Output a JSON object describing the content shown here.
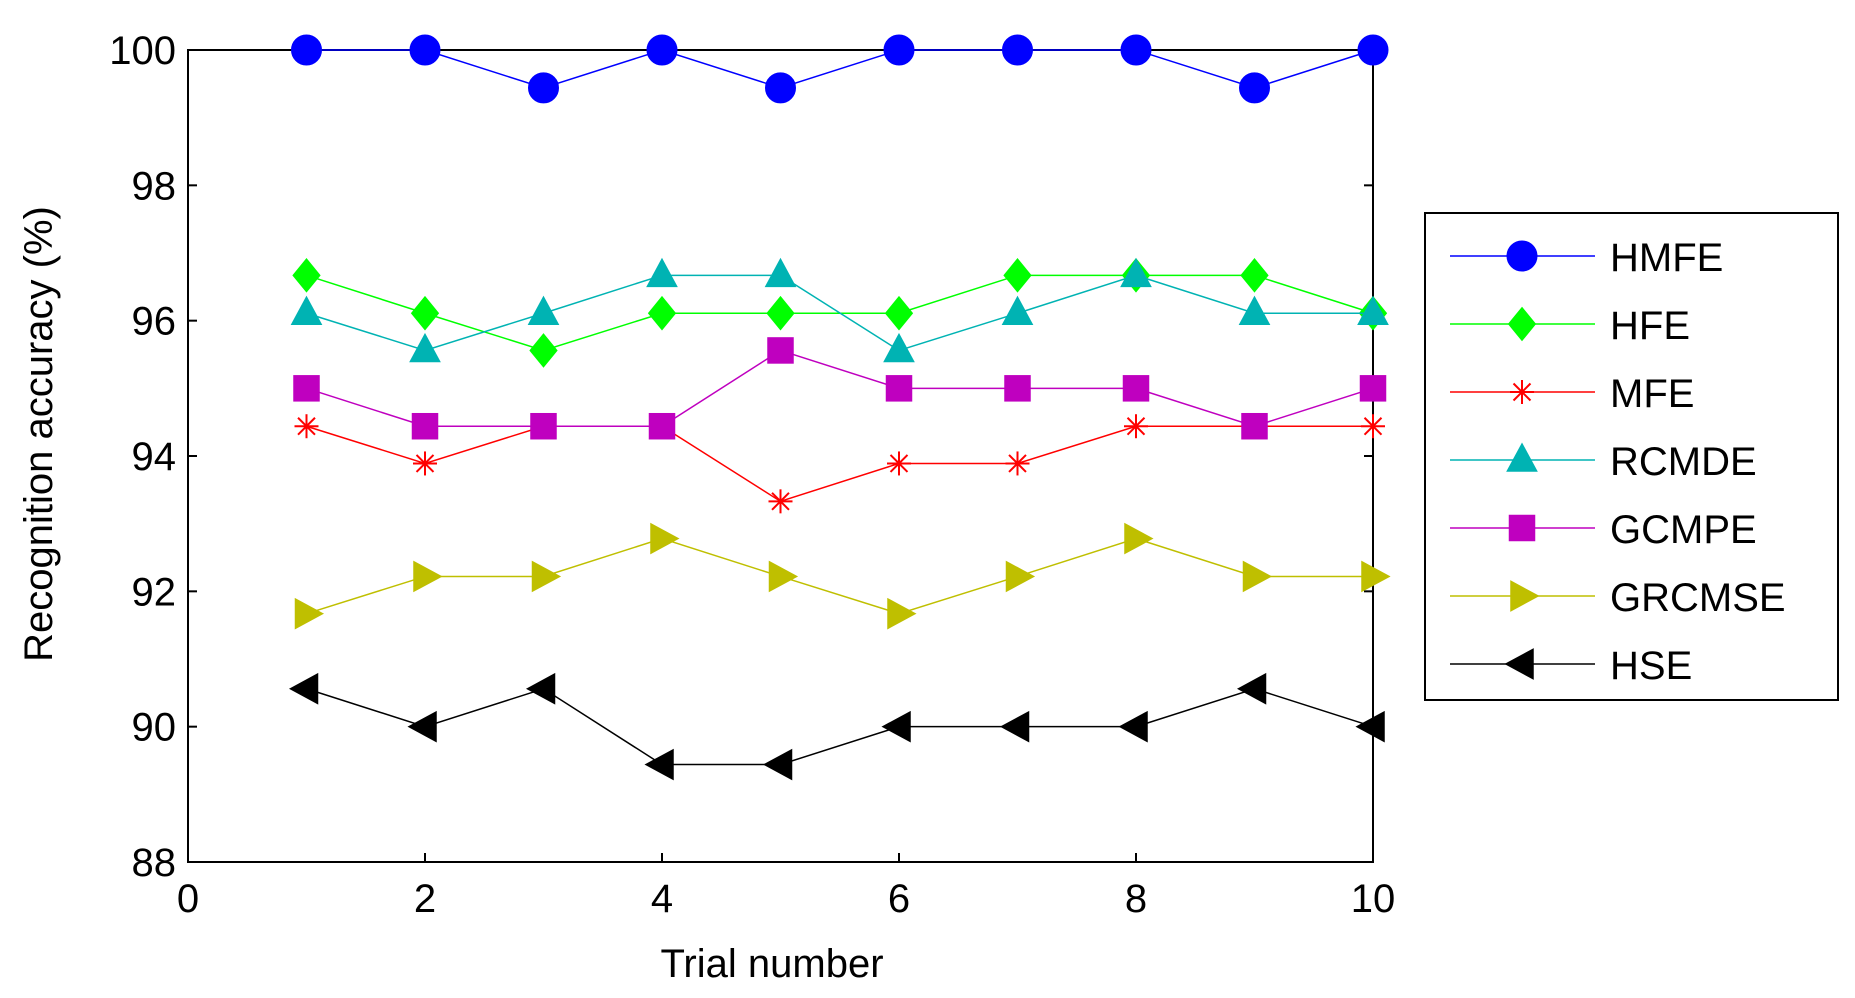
{
  "chart_data": {
    "type": "line",
    "title": "",
    "xlabel": "Trial number",
    "ylabel": "Recognition accuracy (%)",
    "xlim": [
      0,
      10
    ],
    "ylim": [
      88,
      100
    ],
    "xticks": [
      "0",
      "2",
      "4",
      "6",
      "8",
      "10"
    ],
    "yticks": [
      "88",
      "90",
      "92",
      "94",
      "96",
      "98",
      "100"
    ],
    "grid": false,
    "legend_position": "right",
    "x": [
      1,
      2,
      3,
      4,
      5,
      6,
      7,
      8,
      9,
      10
    ],
    "series": [
      {
        "name": "HMFE",
        "color": "#0000ff",
        "marker": "circle",
        "values": [
          100,
          100,
          99.44,
          100,
          99.44,
          100,
          100,
          100,
          99.44,
          100
        ]
      },
      {
        "name": "HFE",
        "color": "#00ff00",
        "marker": "diamond",
        "values": [
          96.67,
          96.11,
          95.56,
          96.11,
          96.11,
          96.11,
          96.67,
          96.67,
          96.67,
          96.11
        ]
      },
      {
        "name": "MFE",
        "color": "#ff0000",
        "marker": "star",
        "values": [
          94.44,
          93.89,
          94.44,
          94.44,
          93.33,
          93.89,
          93.89,
          94.44,
          94.44,
          94.44
        ]
      },
      {
        "name": "RCMDE",
        "color": "#00b3b3",
        "marker": "triangle-up",
        "values": [
          96.11,
          95.56,
          96.11,
          96.67,
          96.67,
          95.56,
          96.11,
          96.67,
          96.11,
          96.11
        ]
      },
      {
        "name": "GCMPE",
        "color": "#bf00bf",
        "marker": "square",
        "values": [
          95,
          94.44,
          94.44,
          94.44,
          95.56,
          95,
          95,
          95,
          94.44,
          95
        ]
      },
      {
        "name": "GRCMSE",
        "color": "#bfbf00",
        "marker": "triangle-right",
        "values": [
          91.67,
          92.22,
          92.22,
          92.78,
          92.22,
          91.67,
          92.22,
          92.78,
          92.22,
          92.22
        ]
      },
      {
        "name": "HSE",
        "color": "#000000",
        "marker": "triangle-left",
        "values": [
          90.56,
          90,
          90.56,
          89.44,
          89.44,
          90,
          90,
          90,
          90.56,
          90
        ]
      }
    ]
  }
}
